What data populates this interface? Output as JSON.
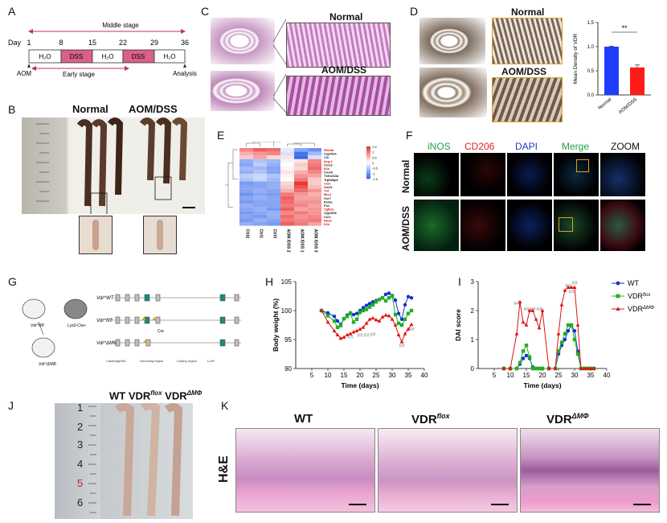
{
  "panels": {
    "a": "A",
    "b": "B",
    "c": "C",
    "d": "D",
    "e": "E",
    "f": "F",
    "g": "G",
    "h": "H",
    "i": "I",
    "j": "J",
    "k": "K"
  },
  "timeline": {
    "day_label": "Day",
    "days": [
      "1",
      "8",
      "15",
      "22",
      "29",
      "36"
    ],
    "middle_stage": "Middle stage",
    "early_stage": "Early stage",
    "segments": [
      "H₂O",
      "DSS",
      "H₂O",
      "DSS",
      "H₂O"
    ],
    "aom": "AOM",
    "analysis": "Analysis"
  },
  "panel_b": {
    "normal": "Normal",
    "aomdss": "AOM/DSS"
  },
  "panel_c": {
    "normal": "Normal",
    "aomdss": "AOM/DSS"
  },
  "panel_d": {
    "normal": "Normal",
    "aomdss": "AOM/DSS",
    "chart_data": {
      "type": "bar",
      "categories": [
        "Normal",
        "AOM/DSS"
      ],
      "values": [
        1.0,
        0.57
      ],
      "errors": [
        0.01,
        0.05
      ],
      "ylabel": "Mean Density of VDR",
      "ylim": [
        0,
        1.5
      ],
      "yticks": [
        "0.0",
        "0.5",
        "1.0",
        "1.5"
      ],
      "significance": "**",
      "colors": [
        "#1f3cff",
        "#ff1a1a"
      ]
    }
  },
  "panel_e": {
    "genes": [
      "Retnla",
      "Cyp4f14",
      "Vdr",
      "Arg-1",
      "Cxcl2",
      "Il1a",
      "Cxcl8",
      "Tnfrsf13b",
      "Trp53bp1",
      "Ccl2",
      "Cxcl1",
      "Tnf",
      "Mrc1",
      "Ccr7",
      "Il10ra",
      "Fn1",
      "Tgfbr2",
      "Cyp4f18",
      "Ccr1",
      "Nos2",
      "Il1b"
    ],
    "gene_colors": [
      "#e00000",
      "#111111",
      "#1030d0",
      "#e00000",
      "#111111",
      "#e00000",
      "#111111",
      "#111111",
      "#111111",
      "#e00000",
      "#111111",
      "#e00000",
      "#e00000",
      "#111111",
      "#111111",
      "#111111",
      "#e00000",
      "#111111",
      "#111111",
      "#e00000",
      "#e00000"
    ],
    "samples": [
      "Ctrl2",
      "Ctrl1",
      "Ctrl3",
      "AOM /DSS 2",
      "AOM /DSS 1",
      "AOM /DSS 3"
    ],
    "scale_ticks": [
      "1.5",
      "1",
      "0.5",
      "0",
      "-0.5",
      "-1",
      "-1.5"
    ]
  },
  "panel_f": {
    "columns": [
      "iNOS",
      "CD206",
      "DAPI",
      "Merge",
      "ZOOM"
    ],
    "rows": [
      "Normal",
      "AOM/DSS"
    ]
  },
  "panel_g": {
    "mice": [
      "Vdr^fl/fl",
      "Lyz2-Cre+",
      "Vdr^ΔMΦ"
    ],
    "alleles": [
      "Vdr^WT",
      "Vdr^fl/fl",
      "Vdr^ΔMΦ"
    ],
    "cre": "Cre",
    "legend": [
      "CasebegDNA",
      "Uncoding region",
      "Coding region",
      "LoxP"
    ]
  },
  "panel_h": {
    "chart_data": {
      "type": "line",
      "xlabel": "Time (days)",
      "ylabel": "Body weight (%)",
      "xlim": [
        0,
        40
      ],
      "ylim": [
        90,
        105
      ],
      "xticks": [
        5,
        10,
        15,
        20,
        25,
        30,
        35,
        40
      ],
      "yticks": [
        90,
        95,
        100,
        105
      ],
      "annotations": [
        "##",
        "##",
        "##",
        "##",
        "##",
        "##"
      ],
      "series": [
        {
          "name": "WT",
          "color": "#1030d0",
          "marker": "circle",
          "x": [
            8,
            10,
            12,
            13,
            14,
            15,
            16,
            17,
            18,
            19,
            20,
            21,
            22,
            23,
            24,
            25,
            26,
            27,
            28,
            29,
            30,
            31,
            32,
            33,
            34,
            35,
            36
          ],
          "y": [
            100,
            99.6,
            99,
            98.2,
            97.6,
            98.6,
            99.2,
            99.6,
            99.3,
            99.5,
            100,
            100.5,
            100.9,
            101.2,
            101.5,
            101.7,
            101.9,
            102.2,
            102.8,
            103,
            102.6,
            101.8,
            99.5,
            98.5,
            101,
            102.4,
            102.2
          ]
        },
        {
          "name": "VDR flox",
          "color": "#20b020",
          "marker": "square",
          "x": [
            8,
            10,
            12,
            13,
            14,
            15,
            16,
            17,
            18,
            19,
            20,
            21,
            22,
            23,
            24,
            25,
            26,
            27,
            28,
            29,
            30,
            31,
            32,
            33,
            34,
            35,
            36
          ],
          "y": [
            100,
            99.1,
            98.2,
            97.1,
            97.4,
            98.6,
            99,
            99.5,
            98,
            98.5,
            99.7,
            100,
            100.2,
            100.6,
            101,
            101.5,
            101.9,
            102.2,
            101.7,
            102.2,
            102.5,
            99.3,
            97.8,
            97.5,
            98.5,
            99.5,
            100
          ]
        },
        {
          "name": "VDR ΔMΦ",
          "color": "#e01010",
          "marker": "triangle",
          "x": [
            8,
            10,
            12,
            13,
            14,
            15,
            16,
            17,
            18,
            19,
            20,
            21,
            22,
            23,
            24,
            25,
            26,
            27,
            28,
            29,
            30,
            31,
            32,
            33,
            34,
            35,
            36
          ],
          "y": [
            100,
            98,
            96.5,
            95.8,
            95.2,
            95.4,
            95.8,
            96,
            96.3,
            96.5,
            96.8,
            97.1,
            97.8,
            98.5,
            98.7,
            98.4,
            98.2,
            98.9,
            99.2,
            99.1,
            98.5,
            97.5,
            95.8,
            94.6,
            96,
            96.8,
            97.6
          ]
        }
      ]
    }
  },
  "panel_i": {
    "chart_data": {
      "type": "line",
      "xlabel": "Time (days)",
      "ylabel": "DAI score",
      "xlim": [
        0,
        40
      ],
      "ylim": [
        0,
        3
      ],
      "xticks": [
        5,
        10,
        15,
        20,
        25,
        30,
        35,
        40
      ],
      "yticks": [
        0,
        1,
        2,
        3
      ],
      "annotations": [
        "##",
        "##",
        "##",
        "##",
        "##",
        "##",
        "##"
      ],
      "series": [
        {
          "name": "WT",
          "color": "#1030d0",
          "marker": "circle",
          "x": [
            8,
            10,
            12,
            13,
            14,
            15,
            16,
            17,
            18,
            19,
            20,
            22,
            24,
            25,
            26,
            27,
            28,
            29,
            30,
            31,
            32,
            33,
            34,
            35,
            36
          ],
          "y": [
            0,
            0,
            0,
            0.15,
            0.35,
            0.45,
            0.35,
            0.05,
            0,
            0,
            0,
            0,
            0,
            0.5,
            0.8,
            1.0,
            1.3,
            1.5,
            1.3,
            0.6,
            0,
            0,
            0,
            0,
            0
          ]
        },
        {
          "name": "VDR flox",
          "color": "#20b020",
          "marker": "square",
          "x": [
            8,
            10,
            12,
            13,
            14,
            15,
            16,
            17,
            18,
            19,
            20,
            22,
            24,
            25,
            26,
            27,
            28,
            29,
            30,
            31,
            32,
            33,
            34,
            35,
            36
          ],
          "y": [
            0,
            0,
            0,
            0.2,
            0.6,
            0.8,
            0.4,
            0,
            0,
            0,
            0,
            0,
            0,
            0.6,
            0.9,
            1.2,
            1.5,
            1.5,
            1.0,
            0.5,
            0,
            0,
            0,
            0,
            0
          ]
        },
        {
          "name": "VDR ΔMΦ",
          "color": "#e01010",
          "marker": "triangle",
          "x": [
            8,
            10,
            12,
            13,
            14,
            15,
            16,
            17,
            18,
            19,
            20,
            22,
            24,
            25,
            26,
            27,
            28,
            29,
            30,
            31,
            32,
            33,
            34,
            35,
            36
          ],
          "y": [
            0,
            0,
            1.2,
            2.3,
            1.6,
            1.5,
            2.0,
            2.0,
            1.7,
            1.4,
            2.0,
            0,
            0,
            1.2,
            2.2,
            2.7,
            2.8,
            2.8,
            2.8,
            1.5,
            0,
            0,
            0,
            0,
            0
          ]
        }
      ]
    },
    "legend": [
      "WT",
      "VDR",
      "flox",
      "VDR",
      "ΔMΦ"
    ]
  },
  "panel_j": {
    "labels": [
      "WT",
      "VDR",
      "flox",
      "VDR",
      "ΔMΦ"
    ],
    "ruler": [
      "1",
      "2",
      "3",
      "4",
      "5",
      "6"
    ]
  },
  "panel_k": {
    "stain": "H&E",
    "titles": [
      "WT",
      "VDR",
      "flox",
      "VDR",
      "ΔMΦ"
    ]
  }
}
